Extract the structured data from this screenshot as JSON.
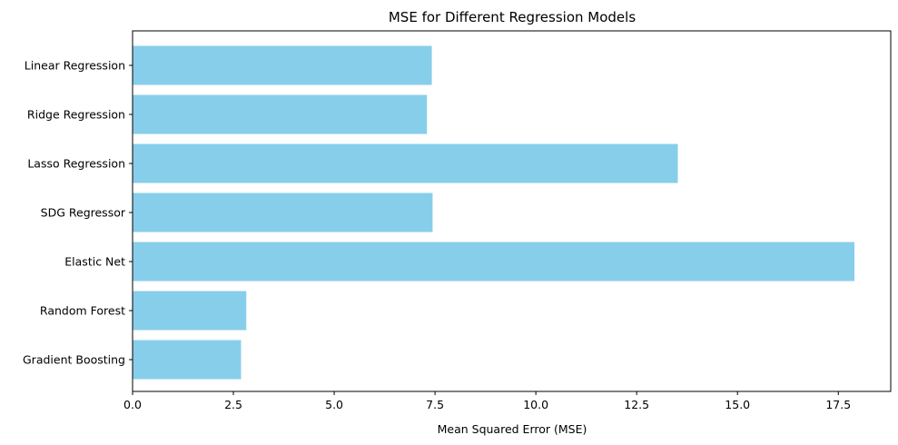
{
  "chart_data": {
    "type": "bar",
    "orientation": "horizontal",
    "title": "MSE for Different Regression Models",
    "xlabel": "Mean Squared Error (MSE)",
    "ylabel": "",
    "categories": [
      "Linear Regression",
      "Ridge Regression",
      "Lasso Regression",
      "SDG Regressor",
      "Elastic Net",
      "Random Forest",
      "Gradient Boosting"
    ],
    "values": [
      7.42,
      7.3,
      13.52,
      7.44,
      17.9,
      2.82,
      2.69
    ],
    "xlim": [
      0,
      18.8
    ],
    "xticks": [
      0,
      2.5,
      5.0,
      7.5,
      10.0,
      12.5,
      15.0,
      17.5
    ],
    "xtick_labels": [
      "0.0",
      "2.5",
      "5.0",
      "7.5",
      "10.0",
      "12.5",
      "15.0",
      "17.5"
    ],
    "bar_color": "#87CEEB",
    "grid": false,
    "legend": "none"
  }
}
